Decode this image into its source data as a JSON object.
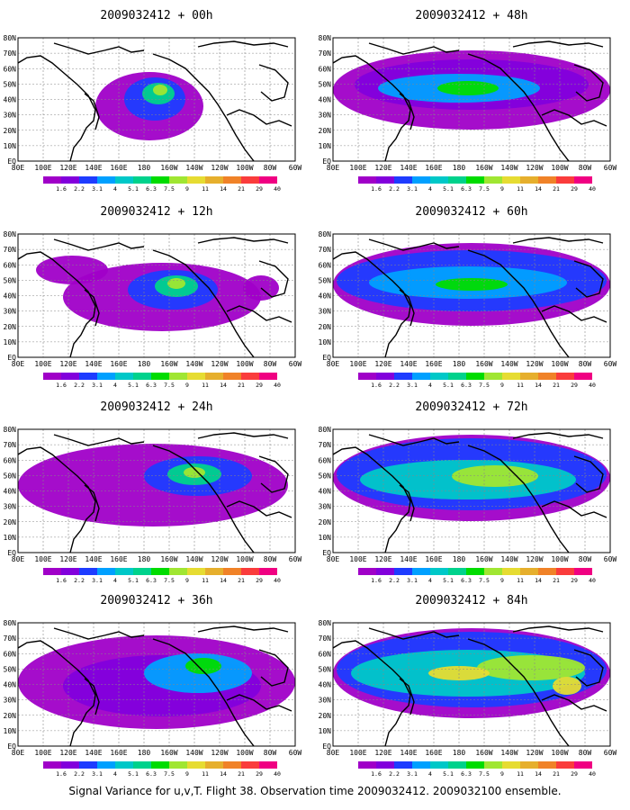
{
  "panels": [
    {
      "id": "p00",
      "title": "2009032412 + 00h",
      "lead_hours": 0
    },
    {
      "id": "p48",
      "title": "2009032412 + 48h",
      "lead_hours": 48
    },
    {
      "id": "p12",
      "title": "2009032412 + 12h",
      "lead_hours": 12
    },
    {
      "id": "p60",
      "title": "2009032412 + 60h",
      "lead_hours": 60
    },
    {
      "id": "p24",
      "title": "2009032412 + 24h",
      "lead_hours": 24
    },
    {
      "id": "p72",
      "title": "2009032412 + 72h",
      "lead_hours": 72
    },
    {
      "id": "p36",
      "title": "2009032412 + 36h",
      "lead_hours": 36
    },
    {
      "id": "p84",
      "title": "2009032412 + 84h",
      "lead_hours": 84
    }
  ],
  "lat_labels": [
    "EQ",
    "10N",
    "20N",
    "30N",
    "40N",
    "50N",
    "60N",
    "70N",
    "80N"
  ],
  "lon_labels": [
    "80E",
    "100E",
    "120E",
    "140E",
    "160E",
    "180",
    "160W",
    "140W",
    "120W",
    "100W",
    "80W",
    "60W"
  ],
  "colorbar": {
    "labels": [
      "1.6",
      "2.2",
      "3.1",
      "4",
      "5.1",
      "6.3",
      "7.5",
      "9",
      "11",
      "14",
      "21",
      "29",
      "40"
    ],
    "colors": [
      "#a000c8",
      "#8200dc",
      "#1e3cff",
      "#00a0ff",
      "#00c8c8",
      "#00d28c",
      "#00dc00",
      "#a0e632",
      "#e6dc32",
      "#e6af2d",
      "#f08228",
      "#fa3c3c",
      "#f00082"
    ]
  },
  "caption": "Signal Variance for u,v,T. Flight 38. Observation time 2009032412. 2009032100 ensemble."
}
